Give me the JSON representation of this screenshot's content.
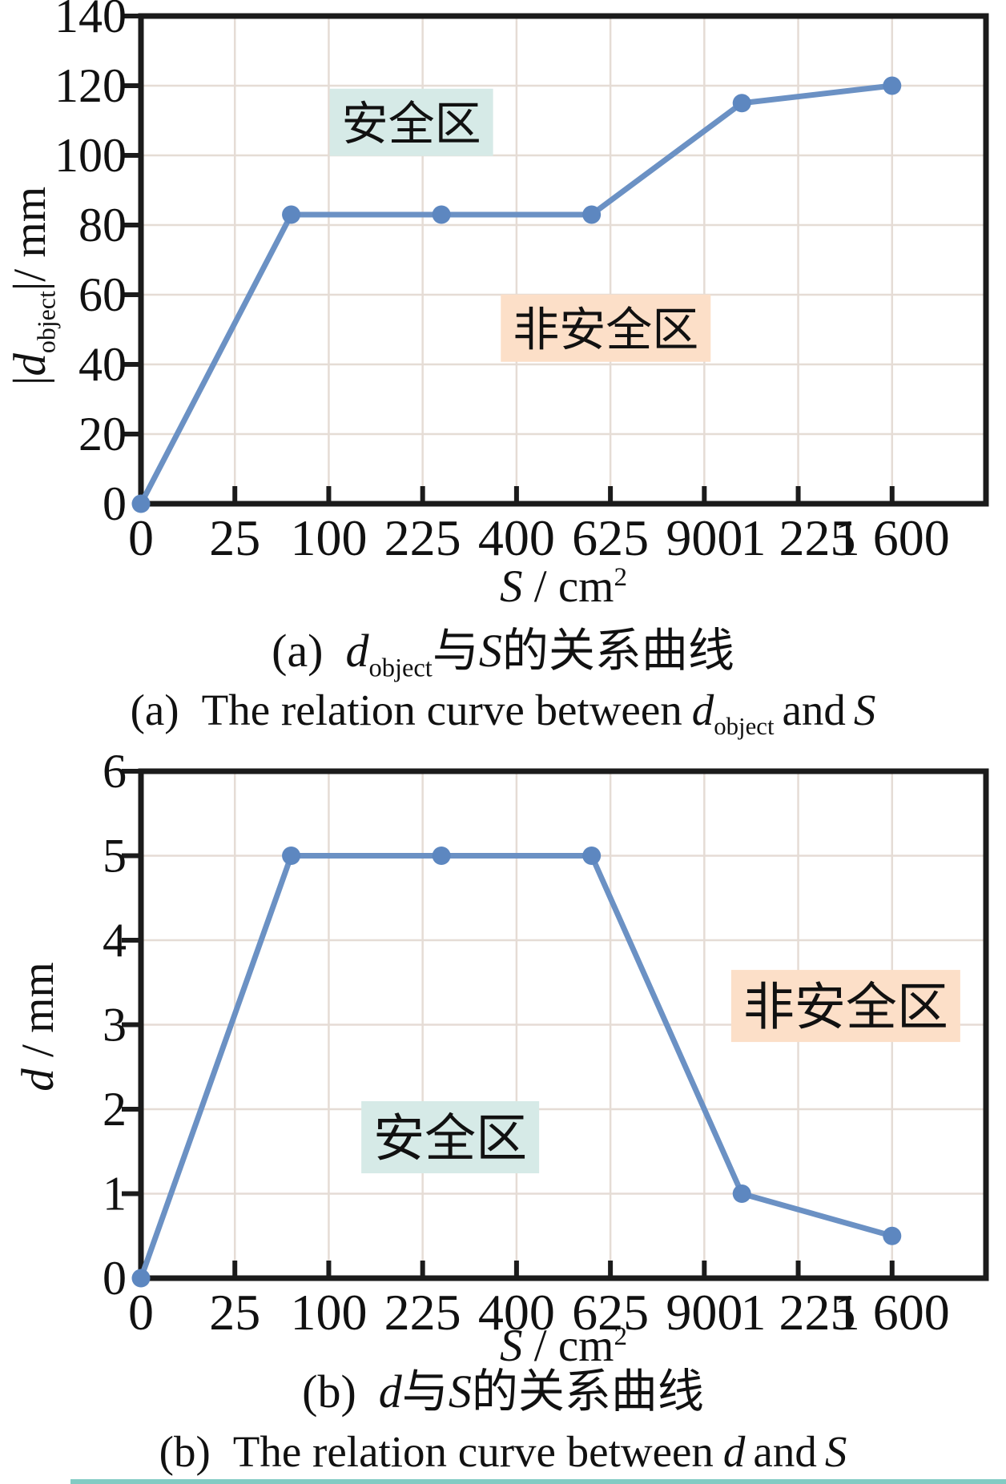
{
  "chart_data": [
    {
      "id": "a",
      "type": "line",
      "x": [
        0,
        64,
        256,
        576,
        1024,
        1600
      ],
      "series": [
        {
          "name": "d_object",
          "values": [
            0,
            83,
            83,
            83,
            115,
            120
          ]
        }
      ],
      "xlabel": "S / cm^2",
      "ylabel": "|d_object| / mm",
      "x_scale": "sqrt",
      "x_tick_values": [
        0,
        25,
        100,
        225,
        400,
        625,
        900,
        1225,
        1600
      ],
      "x_tick_labels": [
        "0",
        "25",
        "100",
        "225",
        "400",
        "625",
        "900",
        "1 225",
        "1 600"
      ],
      "x_domain_sqrt_max": 45,
      "ylim": [
        0,
        140
      ],
      "y_ticks": [
        0,
        20,
        40,
        60,
        80,
        100,
        120,
        140
      ],
      "grid": true,
      "legend": "none",
      "annotations": [
        {
          "text": "安全区",
          "bg": "#d6eae7",
          "fx": 0.32,
          "fy": 0.218,
          "font_px": 58
        },
        {
          "text": "非安全区",
          "bg": "#fcdfc8",
          "fx": 0.55,
          "fy": 0.64,
          "font_px": 58
        }
      ]
    },
    {
      "id": "b",
      "type": "line",
      "x": [
        0,
        64,
        256,
        576,
        1024,
        1600
      ],
      "series": [
        {
          "name": "d",
          "values": [
            0,
            5,
            5,
            5,
            1,
            0.5
          ]
        }
      ],
      "xlabel": "S / cm^2",
      "ylabel": "d / mm",
      "x_scale": "sqrt",
      "x_tick_values": [
        0,
        25,
        100,
        225,
        400,
        625,
        900,
        1225,
        1600
      ],
      "x_tick_labels": [
        "0",
        "25",
        "100",
        "225",
        "400",
        "625",
        "900",
        "1 225",
        "1 600"
      ],
      "x_domain_sqrt_max": 45,
      "ylim": [
        0,
        6
      ],
      "y_ticks": [
        0,
        1,
        2,
        3,
        4,
        5,
        6
      ],
      "grid": true,
      "legend": "none",
      "annotations": [
        {
          "text": "安全区",
          "bg": "#d6eae7",
          "fx": 0.366,
          "fy": 0.722,
          "font_px": 64
        },
        {
          "text": "非安全区",
          "bg": "#fcdfc8",
          "fx": 0.834,
          "fy": 0.463,
          "font_px": 64
        }
      ]
    }
  ],
  "ui": {
    "x_axis": {
      "var": "S",
      "rest": " / cm",
      "sup": "2"
    },
    "y_axis_a": {
      "bar1": "|",
      "var": "d",
      "sub": "object",
      "bar2": "|",
      "rest": "/ mm"
    },
    "y_axis_b": {
      "var": "d",
      "rest": " / mm"
    },
    "captions": {
      "a_zh": {
        "num": "(a)",
        "var1": "d",
        "sub1": "object",
        "mid": "与",
        "var2": "S",
        "rest": "的关系曲线"
      },
      "a_en": {
        "num": "(a)",
        "pre": "The relation curve between",
        "var1": "d",
        "sub1": "object",
        "mid": "and",
        "var2": "S"
      },
      "b_zh": {
        "num": "(b)",
        "var1": "d",
        "mid": "与",
        "var2": "S",
        "rest": "的关系曲线"
      },
      "b_en": {
        "num": "(b)",
        "pre": "The relation curve between",
        "var1": "d",
        "mid": "and",
        "var2": "S"
      }
    }
  },
  "style": {
    "line_color": "#6b91c4",
    "marker_color": "#5d87c0",
    "grid_color": "#e5dcd5",
    "axis_color": "#1b1b1b",
    "text_color": "#111111",
    "safe_zone_bg": "#d6eae7",
    "unsafe_zone_bg": "#fcdfc8",
    "bottom_strip_color": "#82cbc3"
  }
}
